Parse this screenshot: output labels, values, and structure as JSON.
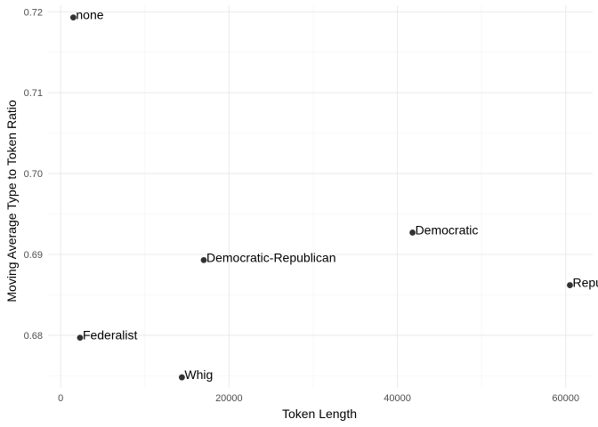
{
  "chart_data": {
    "type": "scatter",
    "title": "",
    "xlabel": "Token Length",
    "ylabel": "Moving Average Type to Token Ratio",
    "xlim": [
      -1500,
      63200
    ],
    "ylim": [
      0.6735,
      0.7208
    ],
    "x_ticks": [
      0,
      20000,
      40000,
      60000
    ],
    "x_tick_labels": [
      "0",
      "20000",
      "40000",
      "60000"
    ],
    "y_ticks": [
      0.68,
      0.69,
      0.7,
      0.71,
      0.72
    ],
    "y_tick_labels": [
      "0.68",
      "0.69",
      "0.70",
      "0.71",
      "0.72"
    ],
    "grid": true,
    "points": [
      {
        "label": "none",
        "x": 1500,
        "y": 0.7193
      },
      {
        "label": "Democratic",
        "x": 41800,
        "y": 0.6927
      },
      {
        "label": "Democratic-Republican",
        "x": 17000,
        "y": 0.6893
      },
      {
        "label": "Republican",
        "x": 60500,
        "y": 0.6862
      },
      {
        "label": "Federalist",
        "x": 2300,
        "y": 0.6797
      },
      {
        "label": "Whig",
        "x": 14400,
        "y": 0.6748
      }
    ],
    "point_color": "#333333"
  }
}
